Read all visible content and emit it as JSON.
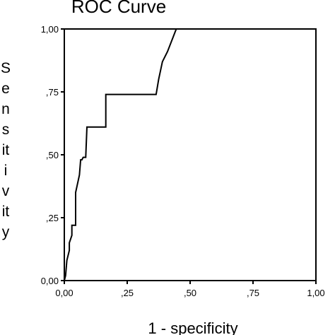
{
  "chart_data": {
    "type": "line",
    "title": "ROC Curve",
    "xlabel": "1 - specificity",
    "ylabel": "Sensitivity",
    "ylabel_lines": [
      "S",
      "e",
      "n",
      "s",
      "it",
      "i",
      "v",
      "it",
      "y"
    ],
    "xlim": [
      0,
      1
    ],
    "ylim": [
      0,
      1
    ],
    "xticks": [
      {
        "value": 0,
        "label": "0,00"
      },
      {
        "value": 0.25,
        "label": ",25"
      },
      {
        "value": 0.5,
        "label": ",50"
      },
      {
        "value": 0.75,
        "label": ",75"
      },
      {
        "value": 1,
        "label": "1,00"
      }
    ],
    "yticks": [
      {
        "value": 0,
        "label": "0,00"
      },
      {
        "value": 0.25,
        "label": ",25"
      },
      {
        "value": 0.5,
        "label": ",50"
      },
      {
        "value": 0.75,
        "label": ",75"
      },
      {
        "value": 1,
        "label": "1,00"
      }
    ],
    "grid": false,
    "series": [
      {
        "x": [
          0.0,
          0.005,
          0.01,
          0.02,
          0.02,
          0.03,
          0.03,
          0.045,
          0.045,
          0.06,
          0.065,
          0.07,
          0.075,
          0.085,
          0.09,
          0.09,
          0.165,
          0.165,
          0.185,
          0.365,
          0.375,
          0.39,
          0.41,
          0.445,
          1.0
        ],
        "y": [
          0.0,
          0.02,
          0.08,
          0.12,
          0.15,
          0.18,
          0.22,
          0.22,
          0.35,
          0.42,
          0.48,
          0.48,
          0.49,
          0.49,
          0.61,
          0.61,
          0.61,
          0.74,
          0.74,
          0.74,
          0.8,
          0.87,
          0.91,
          1.0,
          1.0
        ]
      }
    ]
  }
}
